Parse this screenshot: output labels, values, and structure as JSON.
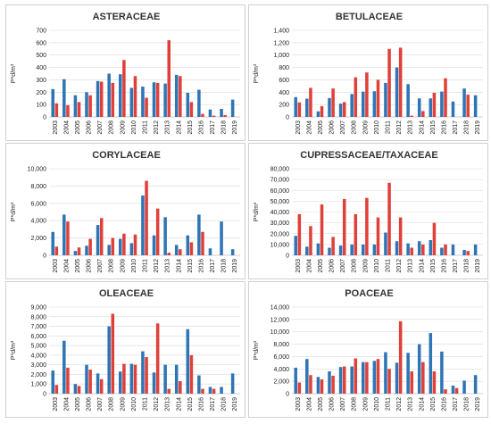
{
  "colors": {
    "blue": "#2e75b6",
    "red": "#e0403a"
  },
  "chart_data": [
    {
      "type": "bar",
      "title": "ASTERACEAE",
      "ylabel": "P*d/m³",
      "ylim": [
        0,
        700
      ],
      "ytick_step": 100,
      "ytick_format": "plain",
      "categories": [
        "2003",
        "2004",
        "2005",
        "2006",
        "2007",
        "2008",
        "2009",
        "2010",
        "2011",
        "2012",
        "2013",
        "2014",
        "2015",
        "2016",
        "2017",
        "2018",
        "2019"
      ],
      "series": [
        {
          "color": "blue",
          "values": [
            225,
            305,
            175,
            200,
            290,
            350,
            345,
            235,
            245,
            280,
            270,
            340,
            195,
            220,
            60,
            65,
            140
          ]
        },
        {
          "color": "red",
          "values": [
            110,
            95,
            120,
            175,
            285,
            275,
            460,
            330,
            155,
            275,
            620,
            330,
            120,
            25,
            10,
            15,
            0
          ]
        }
      ]
    },
    {
      "type": "bar",
      "title": "BETULACEAE",
      "ylabel": "P*d/m³",
      "ylim": [
        0,
        1400
      ],
      "ytick_step": 200,
      "ytick_format": "thousands",
      "categories": [
        "2003",
        "2004",
        "2005",
        "2006",
        "2007",
        "2008",
        "2009",
        "2010",
        "2011",
        "2012",
        "2013",
        "2014",
        "2015",
        "2016",
        "2017",
        "2018",
        "2019"
      ],
      "series": [
        {
          "color": "blue",
          "values": [
            320,
            295,
            90,
            305,
            215,
            370,
            410,
            415,
            550,
            800,
            530,
            300,
            300,
            410,
            250,
            460,
            350
          ]
        },
        {
          "color": "red",
          "values": [
            235,
            470,
            175,
            460,
            240,
            640,
            720,
            600,
            1100,
            1120,
            20,
            95,
            390,
            625,
            0,
            360,
            0
          ]
        }
      ]
    },
    {
      "type": "bar",
      "title": "CORYLACEAE",
      "ylabel": "P*d/m³",
      "ylim": [
        0,
        10000
      ],
      "ytick_step": 2000,
      "ytick_format": "thousands",
      "categories": [
        "2003",
        "2004",
        "2005",
        "2006",
        "2007",
        "2008",
        "2009",
        "2010",
        "2011",
        "2012",
        "2013",
        "2014",
        "2015",
        "2016",
        "2017",
        "2018",
        "2019"
      ],
      "series": [
        {
          "color": "blue",
          "values": [
            2700,
            4700,
            500,
            1100,
            3500,
            1200,
            1900,
            1400,
            6900,
            2300,
            4400,
            1200,
            2300,
            4700,
            800,
            3900,
            700
          ]
        },
        {
          "color": "red",
          "values": [
            1000,
            3900,
            900,
            1900,
            4300,
            2000,
            2500,
            2400,
            8600,
            5400,
            300,
            700,
            1500,
            2700,
            0,
            0,
            0
          ]
        }
      ]
    },
    {
      "type": "bar",
      "title": "CUPRESSACEAE/TAXACEAE",
      "ylabel": "P*d/m³",
      "ylim": [
        0,
        80000
      ],
      "ytick_step": 10000,
      "ytick_format": "thousands",
      "categories": [
        "2003",
        "2004",
        "2005",
        "2006",
        "2007",
        "2008",
        "2009",
        "2010",
        "2011",
        "2012",
        "2013",
        "2014",
        "2015",
        "2016",
        "2017",
        "2018",
        "2019"
      ],
      "series": [
        {
          "color": "blue",
          "values": [
            18000,
            8000,
            11000,
            7000,
            9000,
            10000,
            10000,
            10000,
            21000,
            13000,
            11000,
            13000,
            14000,
            7000,
            10000,
            5000,
            10000
          ]
        },
        {
          "color": "red",
          "values": [
            38000,
            27000,
            47000,
            17000,
            52000,
            38000,
            53000,
            35000,
            67000,
            35000,
            7000,
            10000,
            30000,
            10000,
            0,
            4000,
            0
          ]
        }
      ]
    },
    {
      "type": "bar",
      "title": "OLEACEAE",
      "ylabel": "P*d/m³",
      "ylim": [
        0,
        9000
      ],
      "ytick_step": 1000,
      "ytick_format": "thousands",
      "categories": [
        "2003",
        "2004",
        "2005",
        "2006",
        "2007",
        "2008",
        "2009",
        "2010",
        "2011",
        "2012",
        "2013",
        "2014",
        "2015",
        "2016",
        "2017",
        "2018",
        "2019"
      ],
      "series": [
        {
          "color": "blue",
          "values": [
            2400,
            5500,
            1000,
            3000,
            2100,
            7000,
            2300,
            3100,
            4400,
            2200,
            3000,
            3000,
            6700,
            1900,
            700,
            700,
            2100
          ]
        },
        {
          "color": "red",
          "values": [
            900,
            2700,
            800,
            2500,
            1500,
            8300,
            3100,
            3000,
            3800,
            7300,
            500,
            1300,
            4000,
            500,
            500,
            0,
            0
          ]
        }
      ]
    },
    {
      "type": "bar",
      "title": "POACEAE",
      "ylabel": "P*d/m³",
      "ylim": [
        0,
        14000
      ],
      "ytick_step": 2000,
      "ytick_format": "thousands",
      "categories": [
        "2003",
        "2004",
        "2005",
        "2006",
        "2007",
        "2008",
        "2009",
        "2010",
        "2011",
        "2012",
        "2013",
        "2014",
        "2015",
        "2016",
        "2017",
        "2018",
        "2019"
      ],
      "series": [
        {
          "color": "blue",
          "values": [
            4200,
            5600,
            2700,
            3600,
            4300,
            4400,
            5100,
            5300,
            6700,
            5000,
            6600,
            8000,
            9800,
            6800,
            1300,
            2100,
            3000
          ]
        },
        {
          "color": "red",
          "values": [
            1800,
            3000,
            2300,
            2900,
            4400,
            5700,
            5100,
            5600,
            4000,
            11700,
            3600,
            5100,
            3600,
            700,
            900,
            0,
            0
          ]
        }
      ]
    }
  ]
}
